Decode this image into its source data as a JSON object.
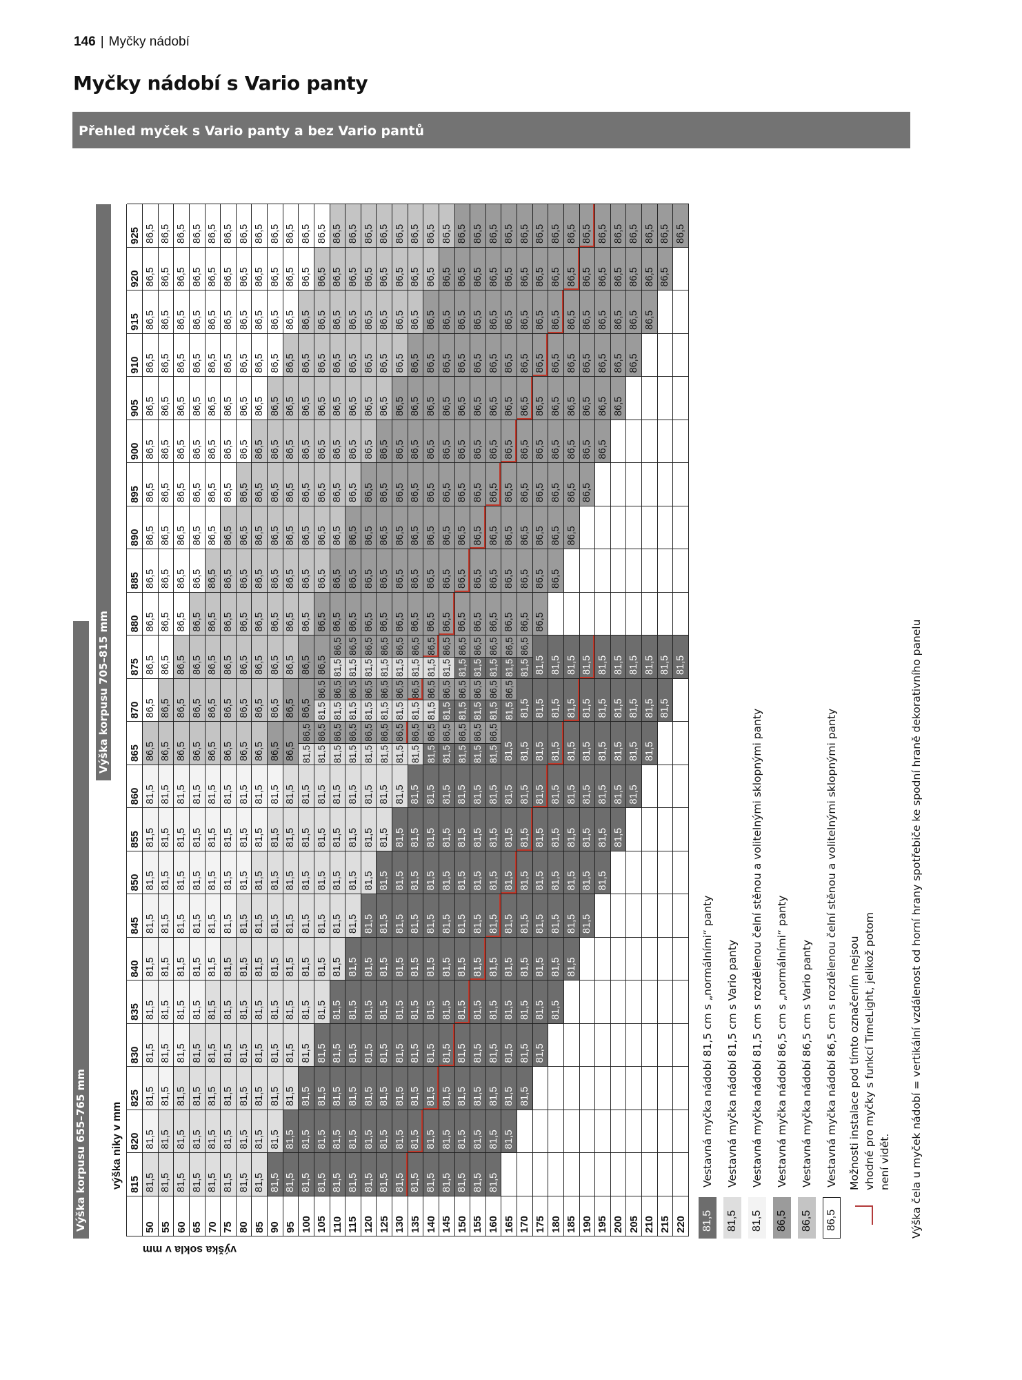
{
  "page_header": {
    "page_number": "146",
    "separator": "|",
    "section": "Myčky nádobí"
  },
  "title": "Myčky nádobí s Vario panty",
  "section_bar": "Přehled myček s Vario panty a bez Vario pantů",
  "table": {
    "corpus_labels": [
      "Výška korpusu 655–765 mm",
      "Výška korpusu 705–815 mm"
    ],
    "niche_axis_label": "výška niky v mm",
    "plinth_axis_label": "výška sokla v mm",
    "plinth_heights": [
      50,
      55,
      60,
      65,
      70,
      75,
      80,
      85,
      90,
      95,
      100,
      105,
      110,
      115,
      120,
      125,
      130,
      135,
      140,
      145,
      150,
      155,
      160,
      165,
      170,
      175,
      180,
      185,
      190,
      195,
      200,
      205,
      210,
      215,
      220
    ],
    "columns": [
      {
        "niche": "815",
        "v81": {
          "value": "81,5",
          "from": 50,
          "to": 160,
          "white_to": 45,
          "dark_from": 90,
          "timelight_after": 130
        }
      },
      {
        "niche": "820",
        "v81": {
          "value": "81,5",
          "from": 50,
          "to": 165,
          "white_to": 50,
          "dark_from": 95,
          "timelight_after": 135
        }
      },
      {
        "niche": "825",
        "v81": {
          "value": "81,5",
          "from": 50,
          "to": 170,
          "white_to": 55,
          "dark_from": 100,
          "timelight_after": 140
        }
      },
      {
        "niche": "830",
        "v81": {
          "value": "81,5",
          "from": 50,
          "to": 175,
          "white_to": 60,
          "dark_from": 105,
          "timelight_after": 145
        }
      },
      {
        "niche": "835",
        "v81": {
          "value": "81,5",
          "from": 50,
          "to": 180,
          "white_to": 65,
          "dark_from": 110,
          "timelight_after": 150
        }
      },
      {
        "niche": "840",
        "v81": {
          "value": "81,5",
          "from": 50,
          "to": 185,
          "white_to": 70,
          "dark_from": 115,
          "timelight_after": 155
        }
      },
      {
        "niche": "845",
        "v81": {
          "value": "81,5",
          "from": 50,
          "to": 190,
          "white_to": 75,
          "dark_from": 120,
          "timelight_after": 160
        }
      },
      {
        "niche": "850",
        "v81": {
          "value": "81,5",
          "from": 50,
          "to": 195,
          "white_to": 80,
          "dark_from": 125,
          "timelight_after": 165
        }
      },
      {
        "niche": "855",
        "v81": {
          "value": "81,5",
          "from": 50,
          "to": 200,
          "white_to": 85,
          "dark_from": 130,
          "timelight_after": 170
        }
      },
      {
        "niche": "860",
        "v81": {
          "value": "81,5",
          "from": 50,
          "to": 205,
          "white_to": 90,
          "dark_from": 135,
          "timelight_after": 175
        }
      },
      {
        "niche": "865",
        "v81": {
          "value": "81,5",
          "from": 100,
          "to": 210,
          "white_to": 95,
          "dark_from": 140,
          "timelight_after": 180
        },
        "v86": {
          "value": "86,5",
          "from": 50,
          "to": 160,
          "white_to": 45,
          "dark_from": 90,
          "timelight_after": 130
        }
      },
      {
        "niche": "870",
        "v81": {
          "value": "81,5",
          "from": 105,
          "to": 215,
          "white_to": 100,
          "dark_from": 145,
          "timelight_after": 185
        },
        "v86": {
          "value": "86,5",
          "from": 50,
          "to": 165,
          "white_to": 50,
          "dark_from": 95,
          "timelight_after": 135
        }
      },
      {
        "niche": "875",
        "v81": {
          "value": "81,5",
          "from": 110,
          "to": 220,
          "white_to": 105,
          "dark_from": 150,
          "timelight_after": 190
        },
        "v86": {
          "value": "86,5",
          "from": 50,
          "to": 170,
          "white_to": 55,
          "dark_from": 100,
          "timelight_after": 140
        }
      },
      {
        "niche": "880",
        "v86": {
          "value": "86,5",
          "from": 50,
          "to": 175,
          "white_to": 60,
          "dark_from": 105,
          "timelight_after": 145
        }
      },
      {
        "niche": "885",
        "v86": {
          "value": "86,5",
          "from": 50,
          "to": 180,
          "white_to": 65,
          "dark_from": 110,
          "timelight_after": 150
        }
      },
      {
        "niche": "890",
        "v86": {
          "value": "86,5",
          "from": 50,
          "to": 185,
          "white_to": 70,
          "dark_from": 115,
          "timelight_after": 155
        }
      },
      {
        "niche": "895",
        "v86": {
          "value": "86,5",
          "from": 50,
          "to": 190,
          "white_to": 75,
          "dark_from": 120,
          "timelight_after": 160
        }
      },
      {
        "niche": "900",
        "v86": {
          "value": "86,5",
          "from": 50,
          "to": 195,
          "white_to": 80,
          "dark_from": 125,
          "timelight_after": 165
        }
      },
      {
        "niche": "905",
        "v86": {
          "value": "86,5",
          "from": 50,
          "to": 200,
          "white_to": 85,
          "dark_from": 130,
          "timelight_after": 170
        }
      },
      {
        "niche": "910",
        "v86": {
          "value": "86,5",
          "from": 50,
          "to": 205,
          "white_to": 90,
          "dark_from": 135,
          "timelight_after": 175
        }
      },
      {
        "niche": "915",
        "v86": {
          "value": "86,5",
          "from": 50,
          "to": 210,
          "white_to": 95,
          "dark_from": 140,
          "timelight_after": 180
        }
      },
      {
        "niche": "920",
        "v86": {
          "value": "86,5",
          "from": 50,
          "to": 215,
          "white_to": 100,
          "dark_from": 145,
          "timelight_after": 185
        }
      },
      {
        "niche": "925",
        "v86": {
          "value": "86,5",
          "from": 50,
          "to": 220,
          "white_to": 105,
          "dark_from": 150,
          "timelight_after": 190
        }
      }
    ]
  },
  "colors": {
    "dark_81_normal_hinges": "#6d6d6d",
    "light_81_vario": "#dedede",
    "white_81_split_front": "#f3f3f3",
    "dark_86_normal_hinges": "#9b9b9b",
    "light_86_vario": "#c4c4c4",
    "white_86_split_front": "#ffffff",
    "timelight_line": "#c0392b",
    "section_bar": "#737373"
  },
  "legend": [
    {
      "value": "81,5",
      "style": "t1",
      "text": "Vestavná myčka nádobí 81,5 cm s „normálními“ panty"
    },
    {
      "value": "81,5",
      "style": "t2",
      "text": "Vestavná myčka nádobí 81,5 cm s Vario panty"
    },
    {
      "value": "81,5",
      "style": "t3",
      "text": "Vestavná myčka nádobí 81,5 cm s rozdělenou čelní stěnou a volitelnými sklopnými panty"
    },
    {
      "value": "86,5",
      "style": "t4",
      "text": "Vestavná myčka nádobí 86,5 cm s „normálními“ panty"
    },
    {
      "value": "86,5",
      "style": "t5",
      "text": "Vestavná myčka nádobí 86,5 cm s Vario panty"
    },
    {
      "value": "86,5",
      "style": "t6",
      "text": "Vestavná myčka nádobí 86,5 cm s rozdělenou čelní stěnou a volitelnými sklopnými panty"
    }
  ],
  "timelight_note": "Možnosti instalace pod tímto označením nejsou vhodné pro myčky s funkcí TimeLight, jelikož potom není vidět.",
  "footnote": "Výška čela u myček nádobí = vertikální vzdálenost od horní hrany spotřebiče ke spodní hraně dekorativního panelu"
}
